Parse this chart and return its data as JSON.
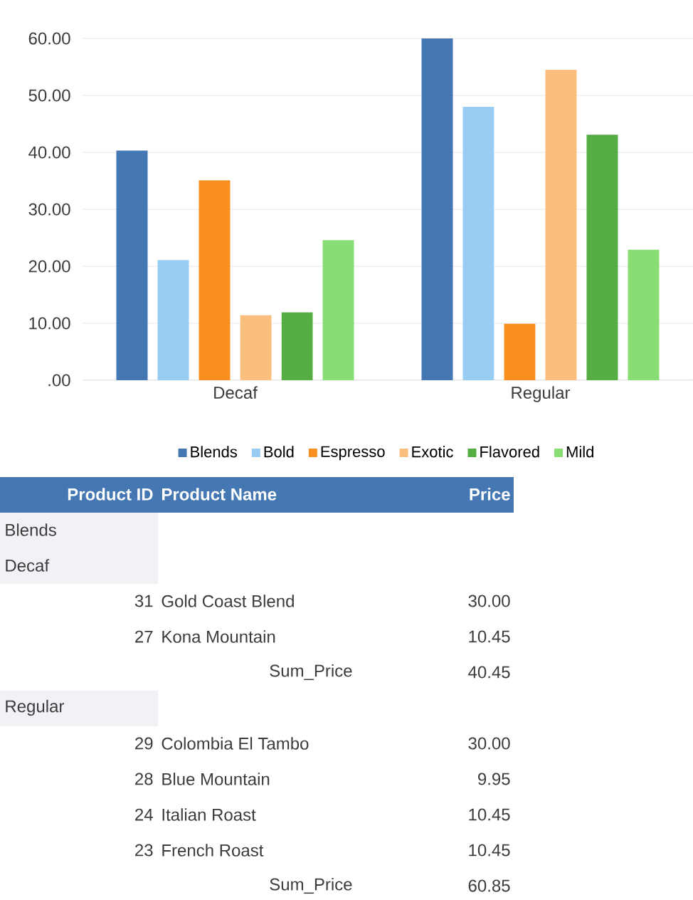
{
  "chart_data": [
    {
      "type": "bar",
      "categories": [
        "Decaf",
        "Regular"
      ],
      "series": [
        {
          "name": "Blends",
          "color": "#4577b2",
          "values": [
            40.3,
            60.0
          ]
        },
        {
          "name": "Bold",
          "color": "#99ccf3",
          "values": [
            21.1,
            48.0
          ]
        },
        {
          "name": "Espresso",
          "color": "#f98f1e",
          "values": [
            35.1,
            9.9
          ]
        },
        {
          "name": "Exotic",
          "color": "#fabe7f",
          "values": [
            11.4,
            54.5
          ]
        },
        {
          "name": "Flavored",
          "color": "#55ad44",
          "values": [
            11.9,
            43.1
          ]
        },
        {
          "name": "Mild",
          "color": "#88dd74",
          "values": [
            24.6,
            22.9
          ]
        }
      ],
      "ylim": [
        0,
        60
      ],
      "yticks": [
        {
          "value": 0,
          "label": ".00"
        },
        {
          "value": 10,
          "label": "10.00"
        },
        {
          "value": 20,
          "label": "20.00"
        },
        {
          "value": 30,
          "label": "30.00"
        },
        {
          "value": 40,
          "label": "40.00"
        },
        {
          "value": 50,
          "label": "50.00"
        },
        {
          "value": 60,
          "label": "60.00"
        }
      ],
      "grid": "y",
      "legend": "bottom"
    },
    {
      "type": "other",
      "annotations": [
        "Product ID",
        "Product Name",
        "Price",
        "Blends",
        "Decaf",
        "31",
        "Gold Coast Blend",
        "30.00",
        "27",
        "Kona Mountain",
        "10.45",
        "Sum_Price",
        "40.45",
        "Regular",
        "29",
        "Colombia El Tambo",
        "30.00",
        "28",
        "Blue Mountain",
        "9.95",
        "24",
        "Italian Roast",
        "10.45",
        "23",
        "French Roast",
        "10.45",
        "Sum_Price",
        "60.85"
      ]
    }
  ]
}
